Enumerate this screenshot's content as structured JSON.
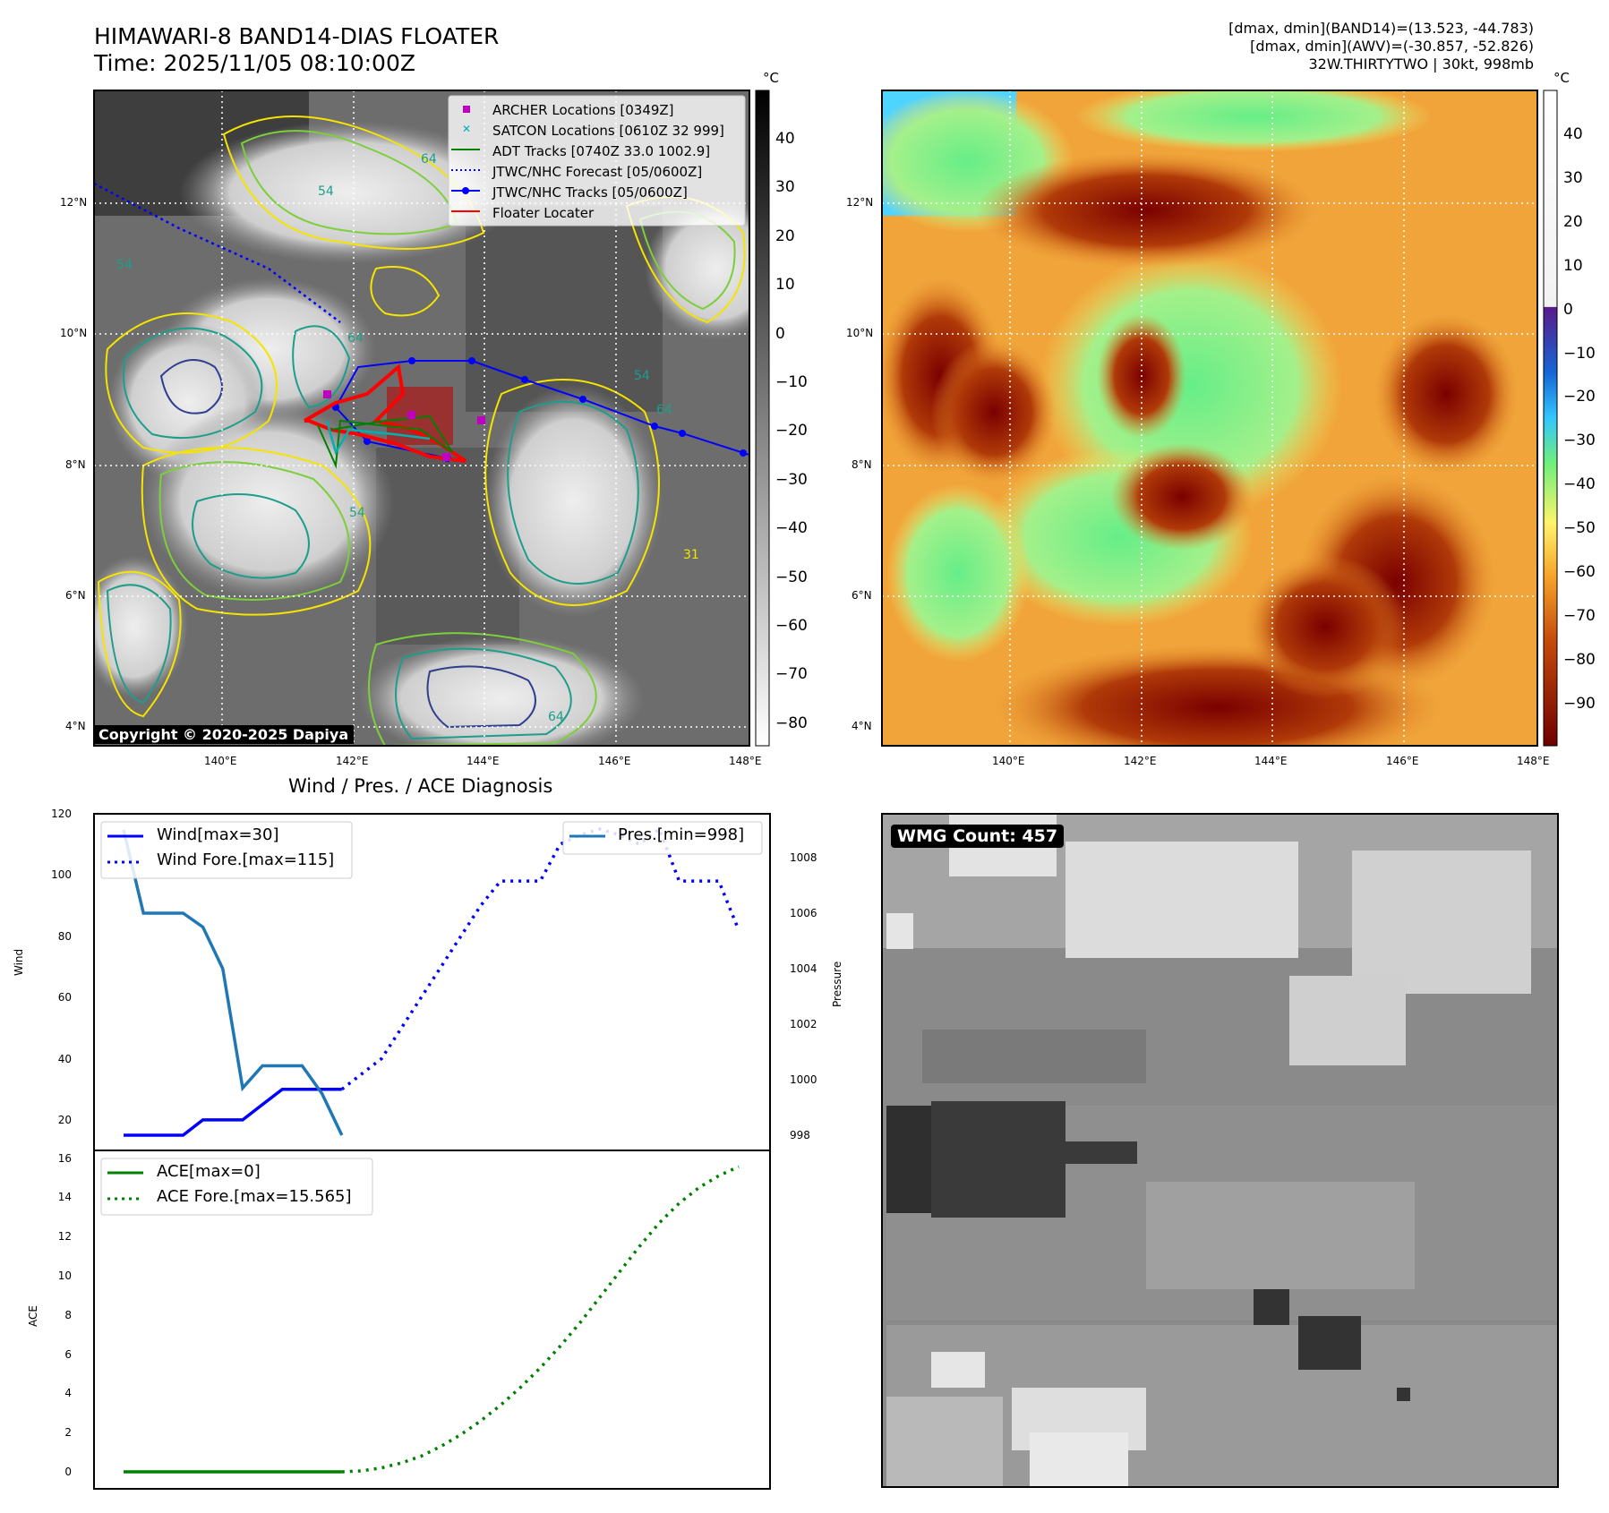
{
  "header": {
    "title_line1": "HIMAWARI-8 BAND14-DIAS FLOATER",
    "title_line2": "Time: 2025/11/05 08:10:00Z",
    "info_line1": "[dmax, dmin](BAND14)=(13.523, -44.783)",
    "info_line2": "[dmax, dmin](AWV)=(-30.857, -52.826)",
    "info_line3": "32W.THIRTYTWO | 30kt, 998mb"
  },
  "map_panel": {
    "lat_ticks": [
      "12°N",
      "10°N",
      "8°N",
      "6°N",
      "4°N"
    ],
    "lon_ticks": [
      "140°E",
      "142°E",
      "144°E",
      "146°E",
      "148°E"
    ],
    "copyright": "Copyright © 2020-2025 Dapiya",
    "colorbar_unit": "°C",
    "colorbar_ticks": [
      "40",
      "30",
      "20",
      "10",
      "0",
      "−10",
      "−20",
      "−30",
      "−40",
      "−50",
      "−60",
      "−70",
      "−80"
    ],
    "legend": [
      {
        "label": "ARCHER Locations [0349Z]",
        "color": "#c000c0",
        "marker": "square"
      },
      {
        "label": "SATCON Locations [0610Z 32 999]",
        "color": "#00b0b0",
        "marker": "x"
      },
      {
        "label": "ADT Tracks [0740Z 33.0 1002.9]",
        "color": "#008000",
        "marker": "line"
      },
      {
        "label": "JTWC/NHC Forecast [05/0600Z]",
        "color": "#0000ff",
        "marker": "dotted"
      },
      {
        "label": "JTWC/NHC Tracks [05/0600Z]",
        "color": "#0000ff",
        "marker": "line-dot"
      },
      {
        "label": "Floater Locater",
        "color": "#ff0000",
        "marker": "line"
      }
    ],
    "contour_labels": [
      "54",
      "64",
      "54",
      "64",
      "31",
      "54",
      "64",
      "54",
      "64"
    ]
  },
  "awv_panel": {
    "lat_ticks": [
      "12°N",
      "10°N",
      "8°N",
      "6°N",
      "4°N"
    ],
    "lon_ticks": [
      "140°E",
      "142°E",
      "144°E",
      "146°E",
      "148°E"
    ],
    "colorbar_unit": "°C",
    "colorbar_ticks": [
      "40",
      "30",
      "20",
      "10",
      "0",
      "−10",
      "−20",
      "−30",
      "−40",
      "−50",
      "−60",
      "−70",
      "−80",
      "−90"
    ]
  },
  "diagnosis": {
    "title": "Wind / Pres. / ACE Diagnosis",
    "wind_ylabel": "Wind",
    "pres_ylabel": "Pressure",
    "ace_ylabel": "ACE",
    "wind_ticks": [
      "120",
      "100",
      "80",
      "60",
      "40",
      "20"
    ],
    "pres_ticks": [
      "1008",
      "1006",
      "1004",
      "1002",
      "1000",
      "998"
    ],
    "ace_ticks": [
      "16",
      "14",
      "12",
      "10",
      "8",
      "6",
      "4",
      "2",
      "0"
    ],
    "legend_wind": "Wind[max=30]",
    "legend_wind_fore": "Wind Fore.[max=115]",
    "legend_pres": "Pres.[min=998]",
    "legend_ace": "ACE[max=0]",
    "legend_ace_fore": "ACE Fore.[max=15.565]"
  },
  "wmg_panel": {
    "label": "WMG Count: 457"
  },
  "chart_data": [
    {
      "type": "line",
      "name": "wind",
      "x": [
        0,
        1,
        2,
        3,
        4,
        5,
        6,
        7,
        8,
        9,
        10,
        11,
        12,
        13,
        14,
        15,
        16,
        17,
        18,
        19,
        20,
        21,
        22,
        23,
        24,
        25,
        26,
        27,
        28,
        29,
        30,
        31
      ],
      "series": [
        {
          "name": "Wind[max=30]",
          "style": "solid",
          "color": "#0000ff",
          "x": [
            0,
            1,
            2,
            3,
            4,
            5,
            6,
            7,
            8,
            9,
            10,
            11
          ],
          "values": [
            15,
            15,
            15,
            15,
            20,
            20,
            20,
            25,
            30,
            30,
            30,
            30
          ]
        },
        {
          "name": "Wind Fore.[max=115]",
          "style": "dotted",
          "color": "#0000ff",
          "x": [
            11,
            12,
            13,
            14,
            15,
            16,
            17,
            18,
            19,
            20,
            21,
            22,
            23,
            24,
            25,
            26,
            27,
            28,
            29,
            30,
            31
          ],
          "values": [
            30,
            35,
            40,
            50,
            60,
            70,
            80,
            90,
            98,
            98,
            98,
            110,
            113,
            115,
            113,
            110,
            115,
            98,
            98,
            98,
            82
          ]
        }
      ],
      "ylim": [
        15,
        120
      ],
      "ylabel": "Wind"
    },
    {
      "type": "line",
      "name": "pressure",
      "series": [
        {
          "name": "Pres.[min=998]",
          "style": "solid",
          "color": "#1f77b4",
          "x": [
            0,
            1,
            2,
            3,
            4,
            5,
            6,
            7,
            8,
            9,
            10,
            11
          ],
          "values": [
            1009,
            1006,
            1006,
            1006,
            1005.5,
            1004,
            999.7,
            1000.5,
            1000.5,
            1000.5,
            999.5,
            998
          ]
        }
      ],
      "ylim": [
        997.5,
        1009.5
      ],
      "ylabel": "Pressure"
    },
    {
      "type": "line",
      "name": "ace",
      "series": [
        {
          "name": "ACE[max=0]",
          "style": "solid",
          "color": "#008000",
          "x": [
            0,
            1,
            2,
            3,
            4,
            5,
            6,
            7,
            8,
            9,
            10,
            11
          ],
          "values": [
            0,
            0,
            0,
            0,
            0,
            0,
            0,
            0,
            0,
            0,
            0,
            0
          ]
        },
        {
          "name": "ACE Fore.[max=15.565]",
          "style": "dotted",
          "color": "#008000",
          "x": [
            11,
            12,
            13,
            14,
            15,
            16,
            17,
            18,
            19,
            20,
            21,
            22,
            23,
            24,
            25,
            26,
            27,
            28,
            29,
            30,
            31
          ],
          "values": [
            0,
            0.05,
            0.2,
            0.45,
            0.8,
            1.3,
            1.9,
            2.6,
            3.4,
            4.3,
            5.3,
            6.4,
            7.6,
            8.9,
            10.2,
            11.5,
            12.7,
            13.7,
            14.5,
            15.1,
            15.565
          ]
        }
      ],
      "ylim": [
        -0.7,
        16
      ],
      "ylabel": "ACE"
    }
  ]
}
